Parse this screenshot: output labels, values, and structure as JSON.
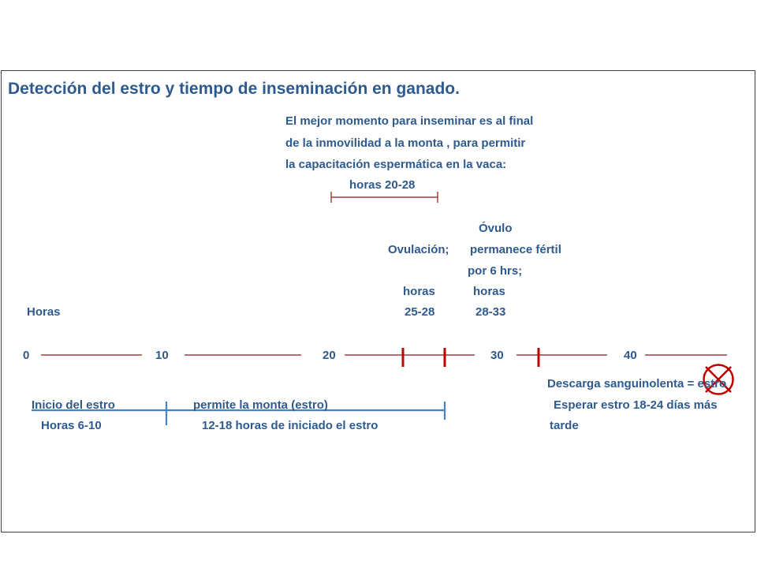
{
  "title": "Detección del estro y tiempo de inseminación en ganado.",
  "best_time": {
    "line1": "El mejor momento para inseminar es al final",
    "line2": "de la inmovilidad a la monta , para permitir",
    "line3": "la capacitación espermática en la vaca:",
    "hours": "horas 20-28"
  },
  "ovule": {
    "line1": "Óvulo",
    "line2": "permanece fértil",
    "line3": "por 6 hrs;",
    "line4": "horas",
    "line5": "28-33"
  },
  "ovulation": {
    "line1": "Ovulación;",
    "line2": "horas",
    "line3": "25-28"
  },
  "hours_label": "Horas",
  "scale": [
    "0",
    "10",
    "20",
    "30",
    "40"
  ],
  "bloody": {
    "line1": "Descarga sanguinolenta = estro",
    "line2": "Esperar estro 18-24 días más",
    "line3": "tarde"
  },
  "estrus_start": {
    "line1": "Inicio del estro",
    "line2": "Horas 6-10"
  },
  "mount": {
    "line1": "permite la monta (estro)",
    "line2": "12-18 horas de iniciado el estro"
  },
  "colors": {
    "text": "#2e5a8e",
    "timeline": "#8b1a1a",
    "marker": "#c00000",
    "bracket": "#4a7fc1"
  }
}
